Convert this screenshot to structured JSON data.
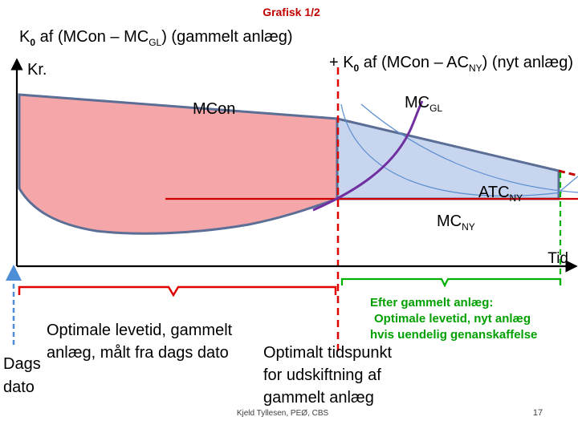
{
  "slide": {
    "title": "Grafisk 1/2",
    "footer": "Kjeld Tyllesen, PEØ, CBS",
    "page_number": "17"
  },
  "diagram": {
    "header_line1": {
      "main": "K",
      "sub0": "0",
      "rest": " af (MCon – MC",
      "sub1": "GL",
      "end": ") (gammelt anlæg)"
    },
    "header_line2": {
      "main": "+ K",
      "sub0": "0",
      "rest": " af (MCon – AC",
      "sub1": "NY",
      "end": ")  (nyt anlæg)"
    },
    "y_axis_label": "Kr.",
    "x_axis_label": "Tid",
    "curve_labels": {
      "mcon": "MCon",
      "mc_gl": {
        "main": "MC",
        "sub": "GL"
      },
      "atc_ny": {
        "main": "ATC",
        "sub": "NY"
      },
      "mc_ny": {
        "main": "MC",
        "sub": "NY"
      }
    },
    "annotations": {
      "optimal_old_line1": "Optimale levetid, gammelt",
      "optimal_old_line2": "anlæg, målt fra dags dato",
      "todays_date_line1": "Dags",
      "todays_date_line2": "dato",
      "replacement_line1": "Optimalt tidspunkt",
      "replacement_line2": "for udskiftning af",
      "replacement_line3": "gammelt anlæg",
      "after_old_line1": "Efter gammelt anlæg:",
      "after_old_line2": "Optimale levetid, nyt anlæg",
      "after_old_line3": "hvis uendelig genanskaffelse"
    },
    "colors": {
      "pink_area": "#f4a6a8",
      "blue_area": "#c7d6ee",
      "mcon_line": "#5b6e96",
      "purple_curve": "#7030a0",
      "red_dashed": "#e00000",
      "green_dashed": "#00b000",
      "blue_dashed": "#4d8ed6",
      "red_bracket": "#e00000"
    }
  }
}
